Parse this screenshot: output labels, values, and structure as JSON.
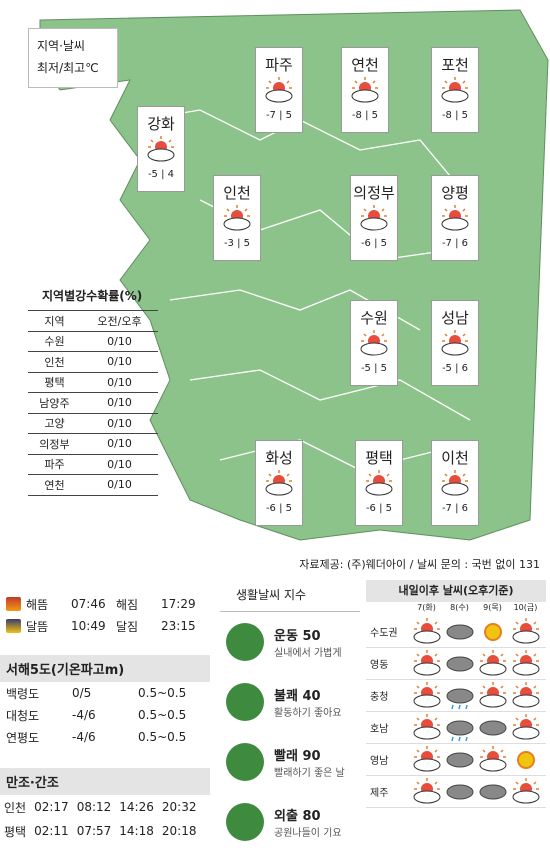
{
  "legend": {
    "line1": "지역·날씨",
    "line2": "최저/최고℃"
  },
  "cities": [
    {
      "name": "파주",
      "low": "-7",
      "high": "5",
      "icon": "partly-cloudy-icon"
    },
    {
      "name": "연천",
      "low": "-8",
      "high": "5",
      "icon": "partly-cloudy-icon"
    },
    {
      "name": "포천",
      "low": "-8",
      "high": "5",
      "icon": "partly-cloudy-icon"
    },
    {
      "name": "강화",
      "low": "-5",
      "high": "4",
      "icon": "partly-cloudy-icon"
    },
    {
      "name": "인천",
      "low": "-3",
      "high": "5",
      "icon": "partly-cloudy-icon"
    },
    {
      "name": "의정부",
      "low": "-6",
      "high": "5",
      "icon": "partly-cloudy-icon"
    },
    {
      "name": "양평",
      "low": "-7",
      "high": "6",
      "icon": "partly-cloudy-icon"
    },
    {
      "name": "수원",
      "low": "-5",
      "high": "5",
      "icon": "partly-cloudy-icon"
    },
    {
      "name": "성남",
      "low": "-5",
      "high": "6",
      "icon": "partly-cloudy-icon"
    },
    {
      "name": "화성",
      "low": "-6",
      "high": "5",
      "icon": "partly-cloudy-icon"
    },
    {
      "name": "평택",
      "low": "-6",
      "high": "5",
      "icon": "partly-cloudy-icon"
    },
    {
      "name": "이천",
      "low": "-7",
      "high": "6",
      "icon": "partly-cloudy-icon"
    }
  ],
  "rain": {
    "title": "지역별강수확률(%)",
    "col1": "지역",
    "col2": "오전/오후",
    "rows": [
      {
        "region": "수원",
        "value": "0/10"
      },
      {
        "region": "인천",
        "value": "0/10"
      },
      {
        "region": "평택",
        "value": "0/10"
      },
      {
        "region": "남양주",
        "value": "0/10"
      },
      {
        "region": "고양",
        "value": "0/10"
      },
      {
        "region": "의정부",
        "value": "0/10"
      },
      {
        "region": "파주",
        "value": "0/10"
      },
      {
        "region": "연천",
        "value": "0/10"
      }
    ]
  },
  "source": "자료제공: (주)웨더아이 / 날씨 문의 : 국번 없이 131",
  "sun": {
    "rise_label": "해뜸",
    "rise": "07:46",
    "set_label": "해짐",
    "set": "17:29",
    "moonrise_label": "달뜸",
    "moonrise": "10:49",
    "moonset_label": "달짐",
    "moonset": "23:15"
  },
  "sea": {
    "title": "서해5도(기온파고m)",
    "rows": [
      {
        "name": "백령도",
        "temp": "0/5",
        "wave": "0.5~0.5"
      },
      {
        "name": "대청도",
        "temp": "-4/6",
        "wave": "0.5~0.5"
      },
      {
        "name": "연평도",
        "temp": "-4/6",
        "wave": "0.5~0.5"
      }
    ]
  },
  "tide": {
    "title": "만조·간조",
    "rows": [
      {
        "name": "인천",
        "t1": "02:17",
        "t2": "08:12",
        "t3": "14:26",
        "t4": "20:32"
      },
      {
        "name": "평택",
        "t1": "02:11",
        "t2": "07:57",
        "t3": "14:18",
        "t4": "20:18"
      }
    ]
  },
  "life": {
    "title": "생활날씨 지수",
    "items": [
      {
        "name": "운동 50",
        "desc": "실내에서 가볍게",
        "icon": "exercise-icon"
      },
      {
        "name": "불쾌 40",
        "desc": "활동하기 좋아요",
        "icon": "discomfort-icon"
      },
      {
        "name": "빨래 90",
        "desc": "빨래하기 좋은 날",
        "icon": "laundry-icon"
      },
      {
        "name": "외출 80",
        "desc": "공원나들이 기요",
        "icon": "outing-icon"
      }
    ]
  },
  "tomorrow": {
    "title": "내일이후 날씨(오후기준)",
    "days": [
      "7(화)",
      "8(수)",
      "9(목)",
      "10(금)"
    ],
    "rows": [
      {
        "region": "수도권",
        "icons": [
          "partly-cloudy-icon",
          "cloudy-icon",
          "sunny-icon",
          "partly-cloudy-icon"
        ]
      },
      {
        "region": "영동",
        "icons": [
          "partly-cloudy-icon",
          "cloudy-icon",
          "partly-cloudy-icon",
          "partly-cloudy-icon"
        ]
      },
      {
        "region": "충청",
        "icons": [
          "partly-cloudy-icon",
          "rain-icon",
          "partly-cloudy-icon",
          "partly-cloudy-icon"
        ]
      },
      {
        "region": "호남",
        "icons": [
          "partly-cloudy-icon",
          "rain-icon",
          "cloudy-icon",
          "partly-cloudy-icon"
        ]
      },
      {
        "region": "영남",
        "icons": [
          "partly-cloudy-icon",
          "cloudy-icon",
          "partly-cloudy-icon",
          "sunny-icon"
        ]
      },
      {
        "region": "제주",
        "icons": [
          "partly-cloudy-icon",
          "cloudy-icon",
          "cloudy-icon",
          "partly-cloudy-icon"
        ]
      }
    ]
  },
  "colors": {
    "map_green": "#8cc38a",
    "map_border": "#ffffff",
    "accent_green": "#3e8a3e"
  }
}
